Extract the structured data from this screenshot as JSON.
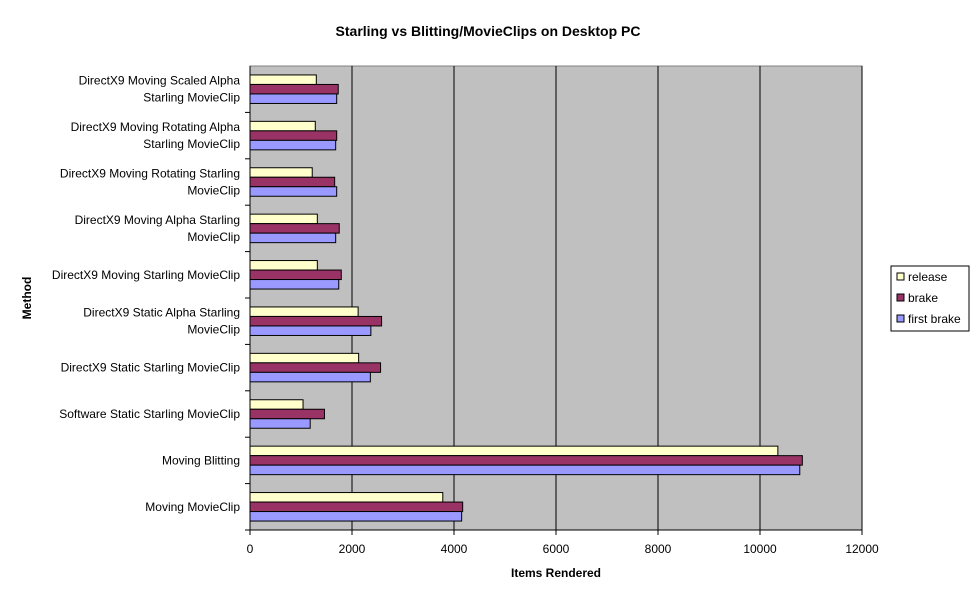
{
  "chart_data": {
    "type": "bar",
    "orientation": "horizontal",
    "title": "Starling vs Blitting/MovieClips on Desktop PC",
    "xlabel": "Items Rendered",
    "ylabel": "Method",
    "xlim": [
      0,
      12000
    ],
    "xticks": [
      "0",
      "2000",
      "4000",
      "6000",
      "8000",
      "10000",
      "12000"
    ],
    "grid": true,
    "legend_position": "right",
    "plot_background": "#c0c0c0",
    "categories": [
      [
        "DirectX9 Moving Scaled Alpha",
        "Starling MovieClip"
      ],
      [
        "DirectX9 Moving Rotating Alpha",
        "Starling MovieClip"
      ],
      [
        "DirectX9 Moving Rotating Starling",
        "MovieClip"
      ],
      [
        "DirectX9 Moving Alpha Starling",
        "MovieClip"
      ],
      [
        "DirectX9 Moving Starling MovieClip"
      ],
      [
        "DirectX9 Static Alpha Starling",
        "MovieClip"
      ],
      [
        "DirectX9 Static Starling MovieClip"
      ],
      [
        "Software Static Starling MovieClip"
      ],
      [
        "Moving Blitting"
      ],
      [
        "Moving MovieClip"
      ]
    ],
    "series": [
      {
        "name": "release",
        "color": "#ffffcc",
        "values": [
          1300,
          1280,
          1220,
          1320,
          1320,
          2120,
          2130,
          1040,
          10350,
          3780
        ]
      },
      {
        "name": "brake",
        "color": "#993366",
        "values": [
          1730,
          1700,
          1660,
          1750,
          1790,
          2580,
          2560,
          1460,
          10830,
          4170
        ]
      },
      {
        "name": "first brake",
        "color": "#9999ff",
        "values": [
          1700,
          1680,
          1700,
          1680,
          1740,
          2370,
          2360,
          1180,
          10780,
          4150
        ]
      }
    ]
  }
}
